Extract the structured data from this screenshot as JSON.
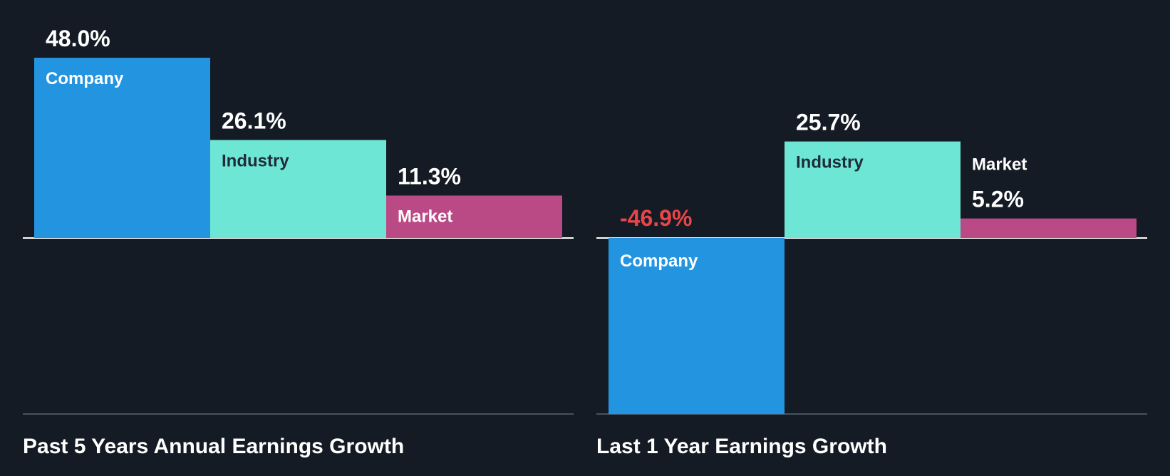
{
  "colors": {
    "background": "#151b24",
    "company": "#2394e0",
    "industry": "#6ee6d5",
    "market": "#ba4a86",
    "negative": "#e84549",
    "text_light": "#ffffff",
    "text_dark": "#1f2b3a",
    "baseline": "#ffffff",
    "bottom_rule": "#4a5260"
  },
  "chart_data": [
    {
      "type": "bar",
      "title": "Past 5 Years Annual Earnings Growth",
      "categories": [
        "Company",
        "Industry",
        "Market"
      ],
      "values": [
        48.0,
        26.1,
        11.3
      ],
      "value_labels": [
        "48.0%",
        "26.1%",
        "11.3%"
      ],
      "unit": "%",
      "ylim": [
        -46.9,
        48.0
      ],
      "grid": false,
      "legend": "none"
    },
    {
      "type": "bar",
      "title": "Last 1 Year Earnings Growth",
      "categories": [
        "Company",
        "Industry",
        "Market"
      ],
      "values": [
        -46.9,
        25.7,
        5.2
      ],
      "value_labels": [
        "-46.9%",
        "25.7%",
        "5.2%"
      ],
      "unit": "%",
      "ylim": [
        -46.9,
        48.0
      ],
      "grid": false,
      "legend": "none"
    }
  ]
}
